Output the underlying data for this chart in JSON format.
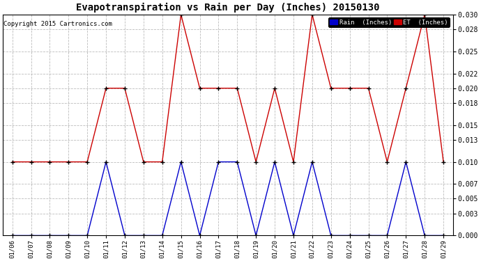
{
  "title": "Evapotranspiration vs Rain per Day (Inches) 20150130",
  "copyright": "Copyright 2015 Cartronics.com",
  "x_labels": [
    "01/06",
    "01/07",
    "01/08",
    "01/09",
    "01/10",
    "01/11",
    "01/12",
    "01/13",
    "01/14",
    "01/15",
    "01/16",
    "01/17",
    "01/18",
    "01/19",
    "01/20",
    "01/21",
    "01/22",
    "01/23",
    "01/24",
    "01/25",
    "01/26",
    "01/27",
    "01/28",
    "01/29"
  ],
  "rain_values": [
    0.0,
    0.0,
    0.0,
    0.0,
    0.0,
    0.01,
    0.0,
    0.0,
    0.0,
    0.01,
    0.0,
    0.01,
    0.01,
    0.0,
    0.01,
    0.0,
    0.01,
    0.0,
    0.0,
    0.0,
    0.0,
    0.01,
    0.0,
    0.0
  ],
  "et_values": [
    0.01,
    0.01,
    0.01,
    0.01,
    0.01,
    0.02,
    0.02,
    0.01,
    0.01,
    0.03,
    0.02,
    0.02,
    0.02,
    0.01,
    0.02,
    0.01,
    0.03,
    0.02,
    0.02,
    0.02,
    0.01,
    0.02,
    0.03,
    0.01
  ],
  "rain_color": "#0000cc",
  "et_color": "#cc0000",
  "ylim": [
    0.0,
    0.03
  ],
  "yticks": [
    0.0,
    0.003,
    0.005,
    0.007,
    0.01,
    0.013,
    0.015,
    0.018,
    0.02,
    0.022,
    0.025,
    0.028,
    0.03
  ],
  "background_color": "#ffffff",
  "grid_color": "#aaaaaa",
  "legend_rain_bg": "#0000cc",
  "legend_et_bg": "#cc0000",
  "legend_rain_text": "Rain  (Inches)",
  "legend_et_text": "ET  (Inches)",
  "figwidth": 6.9,
  "figheight": 3.75,
  "dpi": 100
}
